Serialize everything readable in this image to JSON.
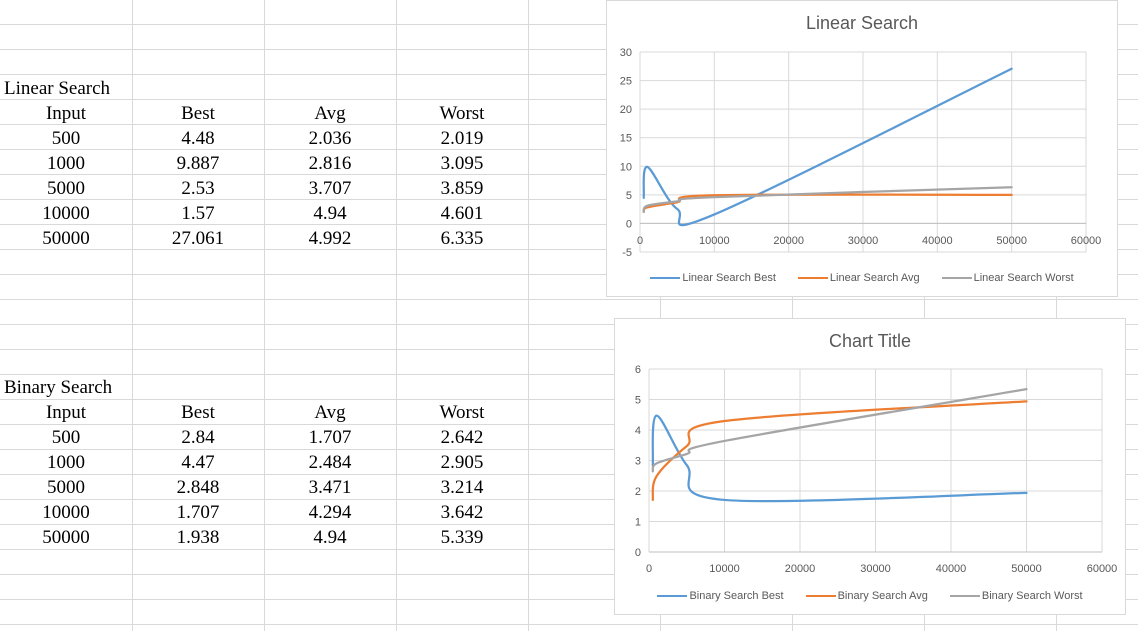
{
  "linear_table": {
    "title": "Linear Search",
    "headers": [
      "Input",
      "Best",
      "Avg",
      "Worst"
    ],
    "rows": [
      [
        "500",
        "4.48",
        "2.036",
        "2.019"
      ],
      [
        "1000",
        "9.887",
        "2.816",
        "3.095"
      ],
      [
        "5000",
        "2.53",
        "3.707",
        "3.859"
      ],
      [
        "10000",
        "1.57",
        "4.94",
        "4.601"
      ],
      [
        "50000",
        "27.061",
        "4.992",
        "6.335"
      ]
    ]
  },
  "binary_table": {
    "title": "Binary Search",
    "headers": [
      "Input",
      "Best",
      "Avg",
      "Worst"
    ],
    "rows": [
      [
        "500",
        "2.84",
        "1.707",
        "2.642"
      ],
      [
        "1000",
        "4.47",
        "2.484",
        "2.905"
      ],
      [
        "5000",
        "2.848",
        "3.471",
        "3.214"
      ],
      [
        "10000",
        "1.707",
        "4.294",
        "3.642"
      ],
      [
        "50000",
        "1.938",
        "4.94",
        "5.339"
      ]
    ]
  },
  "chart_data": [
    {
      "type": "line",
      "title": "Linear Search",
      "x": [
        500,
        1000,
        5000,
        10000,
        50000
      ],
      "xlim": [
        0,
        60000
      ],
      "xticks": [
        0,
        10000,
        20000,
        30000,
        40000,
        50000,
        60000
      ],
      "ylim": [
        -5,
        30
      ],
      "yticks": [
        -5,
        0,
        5,
        10,
        15,
        20,
        25,
        30
      ],
      "grid": true,
      "legend": "bottom",
      "series": [
        {
          "name": "Linear Search Best",
          "values": [
            4.48,
            9.887,
            2.53,
            1.57,
            27.061
          ],
          "color": "#5b9bd5"
        },
        {
          "name": "Linear Search Avg",
          "values": [
            2.036,
            2.816,
            3.707,
            4.94,
            4.992
          ],
          "color": "#ed7d31"
        },
        {
          "name": "Linear Search Worst",
          "values": [
            2.019,
            3.095,
            3.859,
            4.601,
            6.335
          ],
          "color": "#a5a5a5"
        }
      ]
    },
    {
      "type": "line",
      "title": "Chart Title",
      "x": [
        500,
        1000,
        5000,
        10000,
        50000
      ],
      "xlim": [
        0,
        60000
      ],
      "xticks": [
        0,
        10000,
        20000,
        30000,
        40000,
        50000,
        60000
      ],
      "ylim": [
        0,
        6
      ],
      "yticks": [
        0,
        1,
        2,
        3,
        4,
        5,
        6
      ],
      "grid": true,
      "legend": "bottom",
      "series": [
        {
          "name": "Binary Search Best",
          "values": [
            2.84,
            4.47,
            2.848,
            1.707,
            1.938
          ],
          "color": "#5b9bd5"
        },
        {
          "name": "Binary Search Avg",
          "values": [
            1.707,
            2.484,
            3.471,
            4.294,
            4.94
          ],
          "color": "#ed7d31"
        },
        {
          "name": "Binary Search Worst",
          "values": [
            2.642,
            2.905,
            3.214,
            3.642,
            5.339
          ],
          "color": "#a5a5a5"
        }
      ]
    }
  ]
}
